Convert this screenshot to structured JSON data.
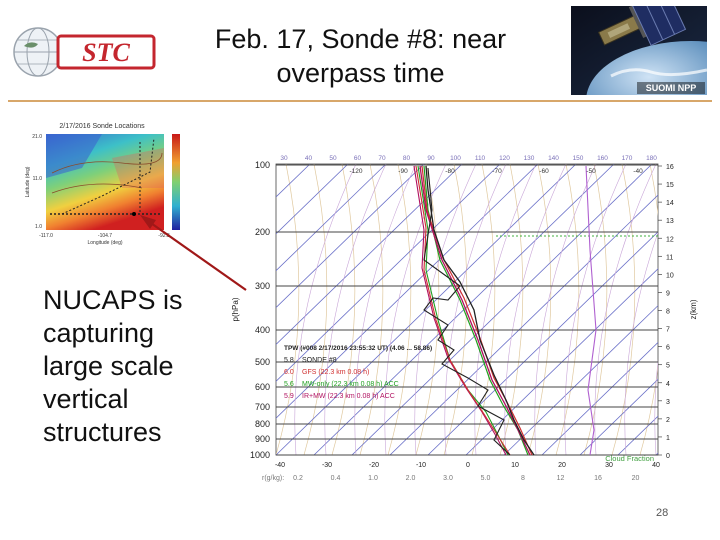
{
  "slide": {
    "title": "Feb. 17, Sonde #8: near overpass time",
    "left_text": "NUCAPS is\ncapturing\nlarge scale\nvertical\nstructures",
    "page_number": "28"
  },
  "logos": {
    "stc_text": "STC",
    "satellite_label": "SUOMI NPP"
  },
  "map_thumbnail": {
    "title": "2/17/2016 Sonde Locations",
    "y_ticks": [
      "21.0",
      "11.0",
      "1.0"
    ],
    "y_label": "Latitude (deg)",
    "x_ticks": [
      "-117.0",
      "-104.7",
      "-92.3"
    ],
    "x_label": "Longitude (deg)"
  },
  "skewt": {
    "pressure_label": "p(hPa)",
    "height_label": "z(km)",
    "pressure_ticks": [
      "100",
      "200",
      "300",
      "400",
      "500",
      "600",
      "700",
      "800",
      "900",
      "1000"
    ],
    "height_ticks": [
      "16",
      "15",
      "14",
      "13",
      "12",
      "11",
      "10",
      "9",
      "8",
      "7",
      "6",
      "5",
      "4",
      "3",
      "2",
      "1",
      "0"
    ],
    "top_temp_ticks": [
      "30",
      "40",
      "50",
      "60",
      "70",
      "80",
      "90",
      "100",
      "110",
      "120",
      "130",
      "140",
      "150",
      "160",
      "170",
      "180"
    ],
    "top_temp_ticks2": [
      "-120",
      "-90",
      "-80",
      "-70",
      "-60",
      "-50",
      "-40"
    ],
    "bottom_temp_ticks": [
      "-40",
      "-30",
      "-20",
      "-10",
      "0",
      "10",
      "20",
      "30",
      "40"
    ],
    "mixing_ratio_label": "r(g/kg):",
    "mixing_ratio_ticks": [
      "0.2",
      "0.4",
      "1.0",
      "2.0",
      "3.0",
      "5.0",
      "8",
      "12",
      "16",
      "20"
    ],
    "legend_header": "TPW (#008 2/17/2016 23:55:32 UT) (4.06 ... 58.86)",
    "legend": [
      {
        "value": "5.8",
        "label": "SONDE #8",
        "color": "#222222"
      },
      {
        "value": "6.0",
        "label": "GFS (22.3 km 0.08 h)",
        "color": "#d03030"
      },
      {
        "value": "5.6",
        "label": "MW-only (22.3 km 0.08 h) ACC",
        "color": "#20a020"
      },
      {
        "value": "5.9",
        "label": "IR+MW (22.3 km 0.08 h) ACC",
        "color": "#b01060"
      }
    ],
    "cloud_fraction_label": "Cloud Fraction"
  }
}
